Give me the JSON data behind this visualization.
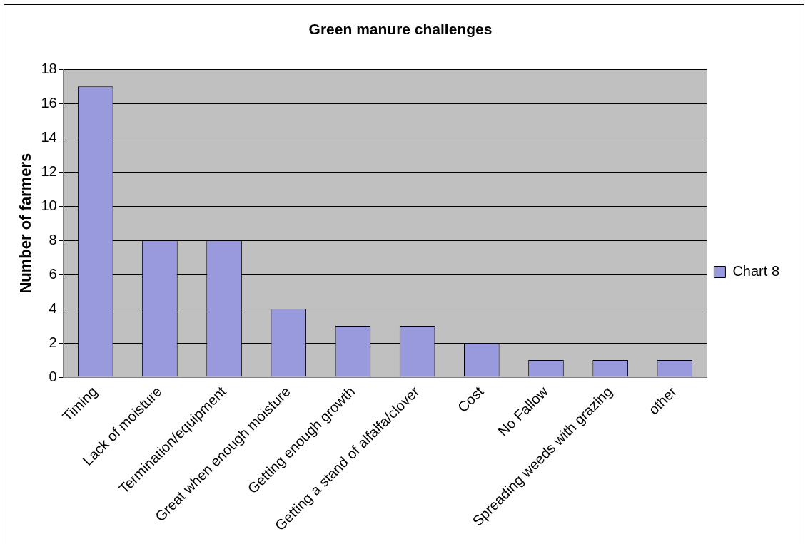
{
  "chart_data": {
    "type": "bar",
    "title": "Green manure challenges",
    "ylabel": "Number of farmers",
    "categories": [
      "Timing",
      "Lack of moisture",
      "Termination/equipment",
      "Great when enough moisture",
      "Getting enough growth",
      "Getting a stand of alfalfa/clover",
      "Cost",
      "No Fallow",
      "Spreading weeds with grazing",
      "other"
    ],
    "series": [
      {
        "name": "Chart 8",
        "color": "#9999dd",
        "values": [
          17,
          8,
          8,
          4,
          3,
          3,
          2,
          1,
          1,
          1
        ]
      }
    ],
    "ylim": [
      0,
      18
    ],
    "yticks": [
      0,
      2,
      4,
      6,
      8,
      10,
      12,
      14,
      16,
      18
    ],
    "grid": "y",
    "legend": "right"
  }
}
